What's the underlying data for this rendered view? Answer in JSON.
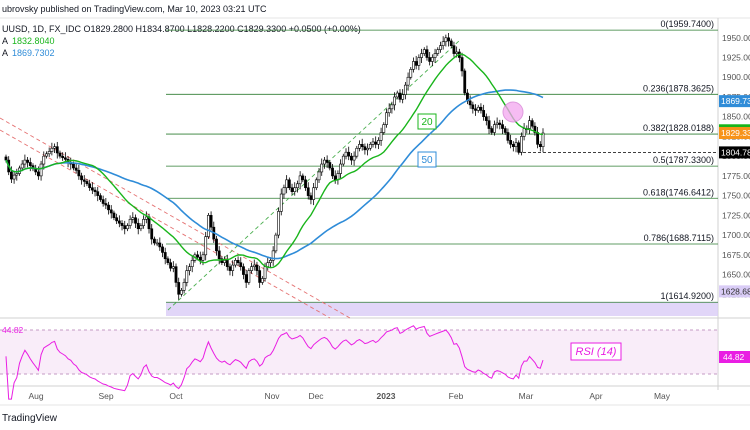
{
  "header": {
    "published_line": "ubrovsky published on TradingView.com, Mar 10, 2023 03:21 UTC",
    "symbol_line": "UUSD, 1D, FX_IDC  O1829.2800  H1834.8700  L1828.2200  C1829.3300  +0.0500 (+0.00%)",
    "ma_fast_label": "A",
    "ma_fast_value": "1832.8040",
    "ma_slow_label": "A",
    "ma_slow_value": "1869.7302"
  },
  "colors": {
    "up": "#ffffff",
    "down": "#000000",
    "wick": "#000000",
    "ma20": "#19b51b",
    "ma50": "#2f8cd8",
    "fib": "#2e7d32",
    "rsi": "#e91ee3",
    "rsi_band": "#f1d7f1",
    "trend": "#e57373",
    "fib_low_fill": "#d9ccf6",
    "price_tag": "#f7931a",
    "ma20_tag": "#19b51b",
    "ma50_tag": "#2f8cd8"
  },
  "chart_data": {
    "type": "candlestick",
    "timeframe": "1D",
    "ylim": [
      1600,
      1970
    ],
    "y_ticks": [
      "1950.00",
      "1925.00",
      "1900.00",
      "1875.00",
      "1850.00",
      "1825.00",
      "1800.00",
      "1775.00",
      "1750.00",
      "1725.00",
      "1700.00",
      "1675.00",
      "1650.00",
      "1625.00"
    ],
    "x_ticks": [
      "Aug",
      "Sep",
      "Oct",
      "Nov",
      "Dec",
      "2023",
      "Feb",
      "Mar",
      "Apr",
      "May"
    ],
    "fib_levels": [
      {
        "ratio": "0",
        "value": 1959.74,
        "label": "0(1959.7400)"
      },
      {
        "ratio": "0.236",
        "value": 1878.3625,
        "label": "0.236(1878.3625)"
      },
      {
        "ratio": "0.382",
        "value": 1828.0188,
        "label": "0.382(1828.0188)"
      },
      {
        "ratio": "0.5",
        "value": 1787.33,
        "label": "0.5(1787.3300)"
      },
      {
        "ratio": "0.618",
        "value": 1746.6412,
        "label": "0.618(1746.6412)"
      },
      {
        "ratio": "0.786",
        "value": 1688.7115,
        "label": "0.786(1688.7115)"
      },
      {
        "ratio": "1",
        "value": 1614.92,
        "label": "1(1614.9200)"
      }
    ],
    "support_line": {
      "value": 1804.78,
      "label": "1804.78"
    },
    "price_tags": [
      {
        "value": 1869.73,
        "label": "1869.73",
        "kind": "ma50"
      },
      {
        "value": 1832.8,
        "label": "1832.80",
        "kind": "ma20"
      },
      {
        "value": 1829.33,
        "label": "1829.33",
        "kind": "price"
      },
      {
        "value": 1804.78,
        "label": "1804.78",
        "kind": "support"
      },
      {
        "value": 1628.68,
        "label": "1628.68",
        "kind": "fib_low"
      }
    ],
    "ma_labels": [
      {
        "text": "20"
      },
      {
        "text": "50"
      }
    ],
    "closes": [
      1795,
      1780,
      1771,
      1776,
      1778,
      1785,
      1790,
      1795,
      1792,
      1788,
      1784,
      1780,
      1775,
      1790,
      1800,
      1803,
      1806,
      1810,
      1812,
      1804,
      1800,
      1798,
      1796,
      1792,
      1790,
      1785,
      1782,
      1775,
      1770,
      1768,
      1765,
      1760,
      1757,
      1755,
      1750,
      1745,
      1740,
      1738,
      1732,
      1728,
      1722,
      1718,
      1715,
      1712,
      1708,
      1712,
      1720,
      1722,
      1715,
      1708,
      1712,
      1720,
      1723,
      1708,
      1695,
      1690,
      1690,
      1685,
      1678,
      1670,
      1665,
      1658,
      1660,
      1640,
      1625,
      1630,
      1640,
      1655,
      1660,
      1668,
      1675,
      1672,
      1668,
      1675,
      1698,
      1725,
      1710,
      1695,
      1680,
      1670,
      1665,
      1668,
      1660,
      1655,
      1662,
      1668,
      1665,
      1660,
      1650,
      1640,
      1655,
      1660,
      1662,
      1655,
      1640,
      1645,
      1660,
      1665,
      1668,
      1680,
      1700,
      1730,
      1752,
      1760,
      1770,
      1760,
      1755,
      1760,
      1765,
      1775,
      1770,
      1760,
      1750,
      1745,
      1760,
      1770,
      1780,
      1790,
      1795,
      1792,
      1785,
      1775,
      1770,
      1778,
      1790,
      1800,
      1805,
      1800,
      1795,
      1800,
      1810,
      1815,
      1812,
      1808,
      1810,
      1815,
      1818,
      1815,
      1820,
      1830,
      1840,
      1855,
      1860,
      1865,
      1875,
      1880,
      1872,
      1878,
      1890,
      1900,
      1910,
      1920,
      1915,
      1925,
      1930,
      1935,
      1925,
      1920,
      1925,
      1930,
      1935,
      1940,
      1945,
      1950,
      1946,
      1940,
      1930,
      1932,
      1925,
      1908,
      1880,
      1870,
      1865,
      1860,
      1858,
      1862,
      1858,
      1850,
      1845,
      1835,
      1830,
      1840,
      1842,
      1840,
      1835,
      1830,
      1820,
      1815,
      1812,
      1817,
      1805,
      1825,
      1835,
      1835,
      1845,
      1838,
      1830,
      1815,
      1812,
      1829.33
    ],
    "ma20": {
      "name": "20",
      "last": 1832.804
    },
    "ma50": {
      "name": "50",
      "last": 1869.7302
    },
    "rsi": {
      "name": "RSI (14)",
      "value": "44.82",
      "label": "RSI (14)",
      "last_label": "44.82",
      "top_left": "44.82"
    }
  },
  "footer": {
    "brand": "TradingView"
  }
}
